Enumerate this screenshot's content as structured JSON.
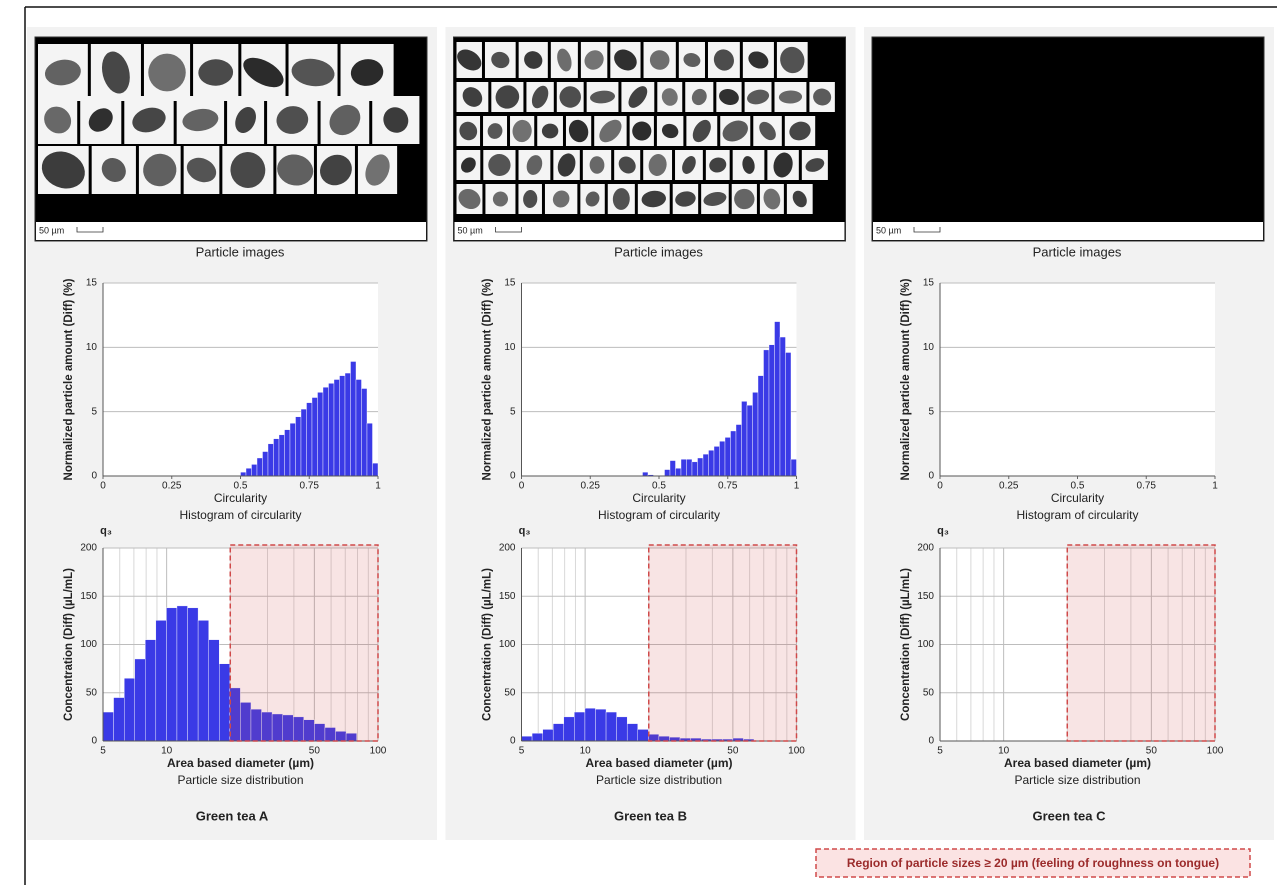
{
  "panels": [
    {
      "name": "Green tea A",
      "image_caption": "Particle images",
      "scale_label": "50 µm"
    },
    {
      "name": "Green tea B",
      "image_caption": "Particle images",
      "scale_label": "50 µm"
    },
    {
      "name": "Green tea C",
      "image_caption": "Particle images",
      "scale_label": "50 µm"
    }
  ],
  "legend": "Region of particle sizes ≥ 20 µm (feeling of roughness on tongue)",
  "chart_data": [
    {
      "type": "histogram",
      "xlabel": "Circularity",
      "ylabel": "Normalized particle amount (Diff) (%)",
      "caption": "Histogram of circularity",
      "color": "#3a3ae6",
      "xlim": [
        0,
        1
      ],
      "ylim": [
        0,
        15
      ],
      "xticks": [
        0,
        0.25,
        0.5,
        0.75,
        1
      ],
      "yticks": [
        0,
        5,
        10,
        15
      ],
      "grid": true,
      "bins": [
        0.5,
        0.52,
        0.54,
        0.56,
        0.58,
        0.6,
        0.62,
        0.64,
        0.66,
        0.68,
        0.7,
        0.72,
        0.74,
        0.76,
        0.78,
        0.8,
        0.82,
        0.84,
        0.86,
        0.88,
        0.9,
        0.92,
        0.94,
        0.96,
        0.98,
        1.0
      ],
      "values": [
        0.3,
        0.6,
        0.9,
        1.4,
        1.9,
        2.5,
        2.9,
        3.2,
        3.6,
        4.1,
        4.6,
        5.2,
        5.7,
        6.1,
        6.5,
        6.9,
        7.2,
        7.5,
        7.8,
        8.0,
        8.9,
        7.5,
        6.8,
        4.1,
        1.0
      ]
    },
    {
      "type": "histogram",
      "xscale": "log",
      "ylabel_top": "q₃",
      "xlabel": "Area based diameter (µm)",
      "ylabel": "Concentration (Diff) (µL/mL)",
      "caption": "Particle size distribution",
      "color": "#3a3ae6",
      "xlim": [
        5,
        100
      ],
      "ylim": [
        0,
        200
      ],
      "xticks": [
        5,
        10,
        50,
        100
      ],
      "x_minor_ticks": [
        6,
        7,
        8,
        9,
        20,
        30,
        40,
        60,
        70,
        80,
        90
      ],
      "yticks": [
        0,
        50,
        100,
        150,
        200
      ],
      "grid": true,
      "highlight_xlim": [
        20,
        100
      ],
      "highlight_color": "#d04a4a",
      "bins": [
        5.0,
        5.61,
        6.3,
        7.06,
        7.92,
        8.89,
        9.98,
        11.19,
        12.56,
        14.09,
        15.81,
        17.74,
        19.91,
        22.33,
        25.06,
        28.12,
        31.55,
        35.4,
        39.72,
        44.56,
        50.0,
        56.1,
        62.95,
        70.63,
        79.24,
        88.91,
        99.76
      ],
      "values": [
        30,
        45,
        65,
        85,
        105,
        125,
        138,
        140,
        138,
        125,
        105,
        80,
        55,
        40,
        33,
        30,
        28,
        27,
        25,
        22,
        18,
        14,
        10,
        8,
        0,
        0
      ]
    },
    {
      "type": "histogram",
      "xlabel": "Circularity",
      "ylabel": "Normalized particle amount (Diff) (%)",
      "caption": "Histogram of circularity",
      "color": "#3a3ae6",
      "xlim": [
        0,
        1
      ],
      "ylim": [
        0,
        15
      ],
      "xticks": [
        0,
        0.25,
        0.5,
        0.75,
        1
      ],
      "yticks": [
        0,
        5,
        10,
        15
      ],
      "grid": true,
      "bins": [
        0.44,
        0.46,
        0.48,
        0.5,
        0.52,
        0.54,
        0.56,
        0.58,
        0.6,
        0.62,
        0.64,
        0.66,
        0.68,
        0.7,
        0.72,
        0.74,
        0.76,
        0.78,
        0.8,
        0.82,
        0.84,
        0.86,
        0.88,
        0.9,
        0.92,
        0.94,
        0.96,
        0.98,
        1.0
      ],
      "values": [
        0.3,
        0.1,
        0,
        0,
        0.5,
        1.2,
        0.6,
        1.3,
        1.3,
        1.1,
        1.4,
        1.7,
        2.0,
        2.3,
        2.7,
        3.0,
        3.5,
        4.0,
        5.8,
        5.5,
        6.5,
        7.8,
        9.8,
        10.2,
        12.0,
        10.8,
        9.6,
        1.3
      ]
    },
    {
      "type": "histogram",
      "xscale": "log",
      "ylabel_top": "q₃",
      "xlabel": "Area based diameter (µm)",
      "ylabel": "Concentration (Diff) (µL/mL)",
      "caption": "Particle size distribution",
      "color": "#3a3ae6",
      "xlim": [
        5,
        100
      ],
      "ylim": [
        0,
        200
      ],
      "xticks": [
        5,
        10,
        50,
        100
      ],
      "x_minor_ticks": [
        6,
        7,
        8,
        9,
        20,
        30,
        40,
        60,
        70,
        80,
        90
      ],
      "yticks": [
        0,
        50,
        100,
        150,
        200
      ],
      "grid": true,
      "highlight_xlim": [
        20,
        100
      ],
      "highlight_color": "#d04a4a",
      "bins": [
        5.0,
        5.61,
        6.3,
        7.06,
        7.92,
        8.89,
        9.98,
        11.19,
        12.56,
        14.09,
        15.81,
        17.74,
        19.91,
        22.33,
        25.06,
        28.12,
        31.55,
        35.4,
        39.72,
        44.56,
        50.0,
        56.1,
        62.95,
        70.63,
        79.24,
        88.91,
        99.76
      ],
      "values": [
        5,
        8,
        12,
        18,
        25,
        30,
        34,
        33,
        30,
        25,
        18,
        12,
        7,
        5,
        4,
        3,
        3,
        2,
        2,
        2,
        3,
        2,
        0,
        0,
        0,
        0
      ]
    },
    {
      "type": "histogram",
      "xlabel": "Circularity",
      "ylabel": "Normalized particle amount (Diff) (%)",
      "caption": "Histogram of circularity",
      "color": "#3a3ae6",
      "xlim": [
        0,
        1
      ],
      "ylim": [
        0,
        15
      ],
      "xticks": [
        0,
        0.25,
        0.5,
        0.75,
        1
      ],
      "yticks": [
        0,
        5,
        10,
        15
      ],
      "grid": true
    },
    {
      "type": "histogram",
      "xscale": "log",
      "ylabel_top": "q₃",
      "xlabel": "Area based diameter (µm)",
      "ylabel": "Concentration (Diff) (µL/mL)",
      "caption": "Particle size distribution",
      "color": "#3a3ae6",
      "xlim": [
        5,
        100
      ],
      "ylim": [
        0,
        200
      ],
      "xticks": [
        5,
        10,
        50,
        100
      ],
      "x_minor_ticks": [
        6,
        7,
        8,
        9,
        20,
        30,
        40,
        60,
        70,
        80,
        90
      ],
      "yticks": [
        0,
        50,
        100,
        150,
        200
      ],
      "grid": true,
      "highlight_xlim": [
        20,
        100
      ],
      "highlight_color": "#d04a4a"
    }
  ]
}
